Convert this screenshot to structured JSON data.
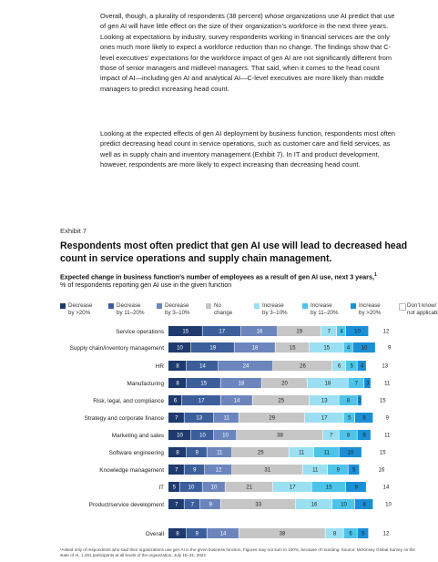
{
  "paragraphs": [
    "Overall, though, a plurality of respondents (38 percent) whose organizations use AI predict that use of gen AI will have little effect on the size of their organization’s workforce in the next three years. Looking at expectations by industry, survey respondents working in financial services are the only ones much more likely to expect a workforce reduction than no change. The findings show that C-level executives’ expectations for the workforce impact of gen AI are not significantly different from those of senior managers and midlevel managers. That said, when it comes to the head count impact of AI—including gen AI and analytical AI—C-level executives are more likely than middle managers to predict increasing head count.",
    "Looking at the expected effects of gen AI deployment by business function, respondents most often predict decreasing head count in service operations, such as customer care and field services, as well as in supply chain and inventory management (Exhibit 7). In IT and product development, however, respondents are more likely to expect increasing than decreasing head count."
  ],
  "exhibit_label": "Exhibit 7",
  "exhibit_title": "Respondents most often predict that gen AI use will lead to decreased head count in service operations and supply chain management.",
  "subtitle": "Expected change in business function’s number of employees as a result of gen AI use, next 3 years,",
  "subtitle_sup": "1",
  "unit_line": "% of respondents reporting gen AI use in the given function",
  "footnote": "¹Asked only of respondents who said their organizations use gen AI in the given business function. Figures may not sum to 100%, because of rounding. Source: McKinsey Global Survey on the state of AI, 1,491 participants at all levels of the organization, July 16–31, 2024",
  "chart_data": {
    "type": "bar",
    "orientation": "horizontal",
    "stacked": true,
    "legend_position": "top",
    "series": [
      {
        "name": "Decrease by >20%",
        "color": "#1f3a6e",
        "label_color": "#ffffff"
      },
      {
        "name": "Decrease by 11–20%",
        "color": "#3c5f9c",
        "label_color": "#ffffff"
      },
      {
        "name": "Decrease by 3–10%",
        "color": "#6c86bd",
        "label_color": "#ffffff"
      },
      {
        "name": "No change",
        "color": "#c6c6c6",
        "label_color": "#222222"
      },
      {
        "name": "Increase by 3–10%",
        "color": "#9be0f2",
        "label_color": "#222222"
      },
      {
        "name": "Increase by 11–20%",
        "color": "#4dc4ea",
        "label_color": "#222222"
      },
      {
        "name": "Increase by >20%",
        "color": "#1a8fd6",
        "label_color": "#222222"
      },
      {
        "name": "Don’t know/ not applicable",
        "color": "#ffffff",
        "label_color": "#222222"
      }
    ],
    "rows": [
      {
        "category": "Service operations",
        "values": [
          15,
          17,
          16,
          19,
          7,
          4,
          10,
          12
        ]
      },
      {
        "category": "Supply chain/inventory management",
        "values": [
          10,
          19,
          18,
          15,
          15,
          4,
          10,
          9
        ]
      },
      {
        "category": "HR",
        "values": [
          8,
          14,
          24,
          26,
          6,
          5,
          4,
          13
        ]
      },
      {
        "category": "Manufacturing",
        "values": [
          8,
          15,
          18,
          20,
          18,
          7,
          3,
          11
        ]
      },
      {
        "category": "Risk, legal, and compliance",
        "values": [
          6,
          17,
          14,
          25,
          13,
          8,
          2,
          15
        ]
      },
      {
        "category": "Strategy and corporate finance",
        "values": [
          7,
          13,
          11,
          29,
          17,
          5,
          8,
          9
        ]
      },
      {
        "category": "Marketing and sales",
        "values": [
          10,
          10,
          10,
          38,
          7,
          8,
          6,
          11
        ]
      },
      {
        "category": "Software engineering",
        "values": [
          8,
          9,
          11,
          25,
          11,
          11,
          10,
          15
        ]
      },
      {
        "category": "Knowledge management",
        "values": [
          7,
          9,
          12,
          31,
          11,
          9,
          5,
          16
        ]
      },
      {
        "category": "IT",
        "values": [
          5,
          10,
          10,
          21,
          17,
          15,
          9,
          14
        ]
      },
      {
        "category": "Product/service development",
        "values": [
          7,
          7,
          9,
          33,
          16,
          10,
          8,
          10
        ]
      },
      {
        "category": "Overall",
        "values": [
          8,
          9,
          14,
          38,
          8,
          6,
          5,
          12
        ]
      }
    ],
    "xlim": [
      0,
      100
    ]
  }
}
